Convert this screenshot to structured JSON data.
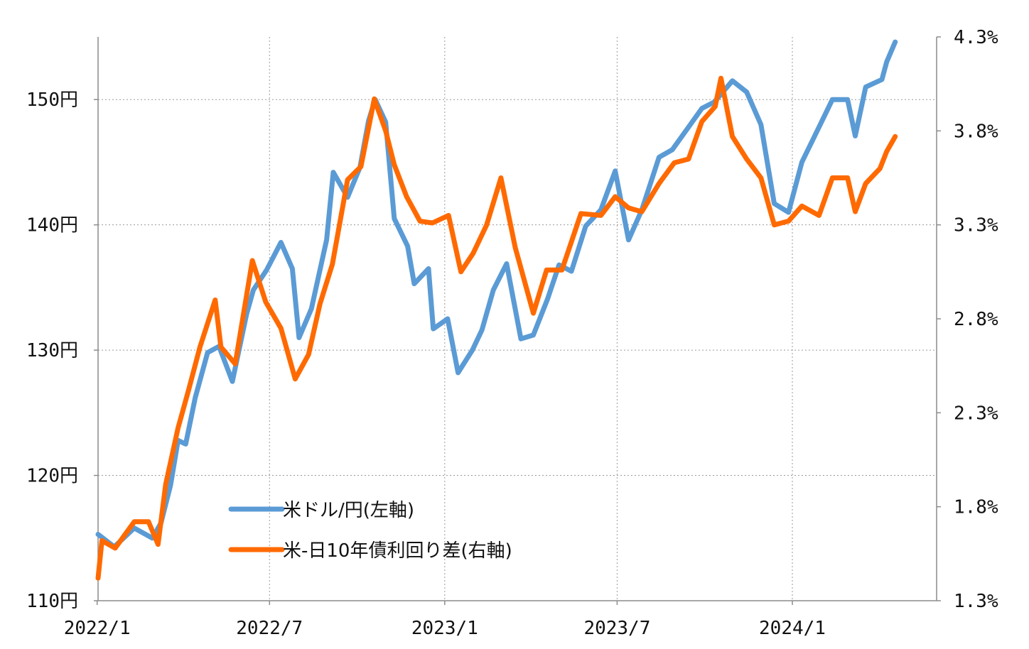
{
  "chart_data": {
    "type": "line",
    "x_ticks": [
      "2022/1",
      "2022/7",
      "2023/1",
      "2023/7",
      "2024/1"
    ],
    "left_axis": {
      "ylim": [
        110,
        155
      ],
      "ticks": [
        110,
        120,
        130,
        140,
        150
      ],
      "tick_labels": [
        "110円",
        "120円",
        "130円",
        "140円",
        "150円"
      ]
    },
    "right_axis": {
      "ylim": [
        1.3,
        4.3
      ],
      "ticks": [
        1.3,
        1.8,
        2.3,
        2.8,
        3.3,
        3.8,
        4.3
      ],
      "tick_labels": [
        "1.3%",
        "1.8%",
        "2.3%",
        "2.8%",
        "3.3%",
        "3.8%",
        "4.3%"
      ]
    },
    "grid": true,
    "legend_position": "bottom-left",
    "series": [
      {
        "name": "米ドル/円(左軸)",
        "axis": "left",
        "color": "#5b9bd5",
        "points": [
          [
            "2022-01-03",
            115.3
          ],
          [
            "2022-01-20",
            114.3
          ],
          [
            "2022-02-10",
            115.8
          ],
          [
            "2022-03-01",
            115.0
          ],
          [
            "2022-03-10",
            116.2
          ],
          [
            "2022-03-20",
            119.2
          ],
          [
            "2022-03-28",
            122.8
          ],
          [
            "2022-04-05",
            122.5
          ],
          [
            "2022-04-15",
            126.2
          ],
          [
            "2022-04-28",
            129.8
          ],
          [
            "2022-05-10",
            130.3
          ],
          [
            "2022-05-24",
            127.5
          ],
          [
            "2022-06-08",
            132.9
          ],
          [
            "2022-06-15",
            134.8
          ],
          [
            "2022-06-29",
            136.4
          ],
          [
            "2022-07-14",
            138.6
          ],
          [
            "2022-07-26",
            136.5
          ],
          [
            "2022-08-02",
            131.0
          ],
          [
            "2022-08-15",
            133.3
          ],
          [
            "2022-08-31",
            138.8
          ],
          [
            "2022-09-07",
            144.2
          ],
          [
            "2022-09-22",
            142.2
          ],
          [
            "2022-10-05",
            144.6
          ],
          [
            "2022-10-14",
            148.3
          ],
          [
            "2022-10-21",
            150.0
          ],
          [
            "2022-11-01",
            148.2
          ],
          [
            "2022-11-10",
            140.5
          ],
          [
            "2022-11-24",
            138.3
          ],
          [
            "2022-12-01",
            135.3
          ],
          [
            "2022-12-16",
            136.5
          ],
          [
            "2022-12-21",
            131.7
          ],
          [
            "2023-01-05",
            132.5
          ],
          [
            "2023-01-16",
            128.2
          ],
          [
            "2023-01-31",
            130.0
          ],
          [
            "2023-02-10",
            131.6
          ],
          [
            "2023-02-22",
            134.8
          ],
          [
            "2023-03-08",
            136.9
          ],
          [
            "2023-03-23",
            130.9
          ],
          [
            "2023-04-05",
            131.2
          ],
          [
            "2023-04-20",
            134.1
          ],
          [
            "2023-05-02",
            136.8
          ],
          [
            "2023-05-15",
            136.3
          ],
          [
            "2023-05-30",
            139.9
          ],
          [
            "2023-06-15",
            141.2
          ],
          [
            "2023-06-30",
            144.3
          ],
          [
            "2023-07-14",
            138.8
          ],
          [
            "2023-07-28",
            141.2
          ],
          [
            "2023-08-15",
            145.4
          ],
          [
            "2023-08-29",
            146.0
          ],
          [
            "2023-09-15",
            147.8
          ],
          [
            "2023-09-29",
            149.3
          ],
          [
            "2023-10-12",
            149.8
          ],
          [
            "2023-10-31",
            151.5
          ],
          [
            "2023-11-15",
            150.6
          ],
          [
            "2023-11-30",
            148.0
          ],
          [
            "2023-12-14",
            141.7
          ],
          [
            "2023-12-29",
            141.0
          ],
          [
            "2024-01-12",
            145.0
          ],
          [
            "2024-01-30",
            147.8
          ],
          [
            "2024-02-13",
            150.0
          ],
          [
            "2024-02-29",
            150.0
          ],
          [
            "2024-03-08",
            147.1
          ],
          [
            "2024-03-19",
            151.0
          ],
          [
            "2024-04-05",
            151.6
          ],
          [
            "2024-04-10",
            153.0
          ],
          [
            "2024-04-19",
            154.6
          ]
        ]
      },
      {
        "name": "米-日10年債利回り差(右軸)",
        "axis": "right",
        "color": "#ff6a00",
        "points": [
          [
            "2022-01-03",
            1.42
          ],
          [
            "2022-01-07",
            1.62
          ],
          [
            "2022-01-21",
            1.58
          ],
          [
            "2022-02-10",
            1.72
          ],
          [
            "2022-02-25",
            1.72
          ],
          [
            "2022-03-07",
            1.6
          ],
          [
            "2022-03-15",
            1.92
          ],
          [
            "2022-03-28",
            2.22
          ],
          [
            "2022-04-08",
            2.42
          ],
          [
            "2022-04-20",
            2.65
          ],
          [
            "2022-05-06",
            2.9
          ],
          [
            "2022-05-12",
            2.65
          ],
          [
            "2022-05-27",
            2.56
          ],
          [
            "2022-06-14",
            3.11
          ],
          [
            "2022-06-28",
            2.89
          ],
          [
            "2022-07-14",
            2.75
          ],
          [
            "2022-07-29",
            2.48
          ],
          [
            "2022-08-12",
            2.61
          ],
          [
            "2022-08-24",
            2.88
          ],
          [
            "2022-09-06",
            3.09
          ],
          [
            "2022-09-22",
            3.54
          ],
          [
            "2022-10-06",
            3.61
          ],
          [
            "2022-10-20",
            3.97
          ],
          [
            "2022-11-01",
            3.8
          ],
          [
            "2022-11-10",
            3.62
          ],
          [
            "2022-11-23",
            3.45
          ],
          [
            "2022-12-07",
            3.32
          ],
          [
            "2022-12-20",
            3.31
          ],
          [
            "2023-01-06",
            3.35
          ],
          [
            "2023-01-19",
            3.05
          ],
          [
            "2023-02-01",
            3.15
          ],
          [
            "2023-02-15",
            3.3
          ],
          [
            "2023-03-02",
            3.55
          ],
          [
            "2023-03-17",
            3.18
          ],
          [
            "2023-04-05",
            2.83
          ],
          [
            "2023-04-19",
            3.06
          ],
          [
            "2023-05-05",
            3.06
          ],
          [
            "2023-05-25",
            3.36
          ],
          [
            "2023-06-15",
            3.35
          ],
          [
            "2023-06-30",
            3.45
          ],
          [
            "2023-07-14",
            3.39
          ],
          [
            "2023-07-28",
            3.37
          ],
          [
            "2023-08-15",
            3.52
          ],
          [
            "2023-08-31",
            3.63
          ],
          [
            "2023-09-15",
            3.65
          ],
          [
            "2023-09-29",
            3.85
          ],
          [
            "2023-10-13",
            3.93
          ],
          [
            "2023-10-19",
            4.08
          ],
          [
            "2023-10-31",
            3.77
          ],
          [
            "2023-11-15",
            3.65
          ],
          [
            "2023-11-30",
            3.55
          ],
          [
            "2023-12-14",
            3.3
          ],
          [
            "2023-12-29",
            3.32
          ],
          [
            "2024-01-12",
            3.4
          ],
          [
            "2024-01-30",
            3.35
          ],
          [
            "2024-02-13",
            3.55
          ],
          [
            "2024-02-29",
            3.55
          ],
          [
            "2024-03-08",
            3.37
          ],
          [
            "2024-03-19",
            3.52
          ],
          [
            "2024-04-03",
            3.6
          ],
          [
            "2024-04-10",
            3.69
          ],
          [
            "2024-04-19",
            3.77
          ]
        ]
      }
    ]
  }
}
